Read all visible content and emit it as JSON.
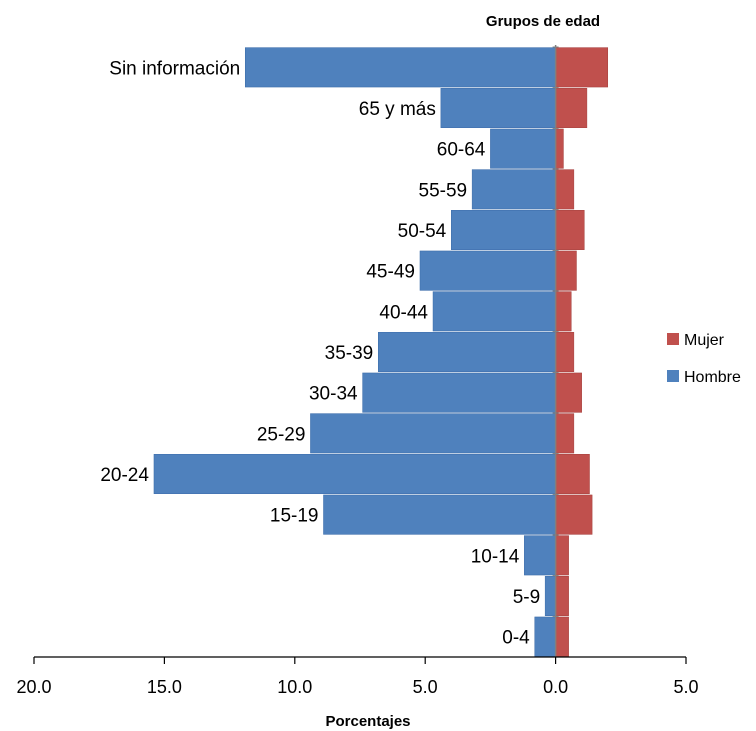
{
  "chart_data": {
    "type": "bar",
    "orientation": "horizontal",
    "title": "",
    "ylabel": "Grupos de edad",
    "xlabel": "Porcentajes",
    "xlim": [
      -20,
      5
    ],
    "x_ticks": [
      -20,
      -15,
      -10,
      -5,
      0,
      5
    ],
    "x_tick_labels": [
      "20.0",
      "15.0",
      "10.0",
      "5.0",
      "0.0",
      "5.0"
    ],
    "categories": [
      "0-4",
      "5-9",
      "10-14",
      "15-19",
      "20-24",
      "25-29",
      "30-34",
      "35-39",
      "40-44",
      "45-49",
      "50-54",
      "55-59",
      "60-64",
      "65 y más",
      "Sin información"
    ],
    "series": [
      {
        "name": "Hombre",
        "color": "#4f81bd",
        "values": [
          -0.8,
          -0.4,
          -1.2,
          -8.9,
          -15.4,
          -9.4,
          -7.4,
          -6.8,
          -4.7,
          -5.2,
          -4.0,
          -3.2,
          -2.5,
          -4.4,
          -11.9
        ]
      },
      {
        "name": "Mujer",
        "color": "#c0504d",
        "values": [
          0.5,
          0.5,
          0.5,
          1.4,
          1.3,
          0.7,
          1.0,
          0.7,
          0.6,
          0.8,
          1.1,
          0.7,
          0.3,
          1.2,
          2.0
        ]
      }
    ],
    "legend_position": "right",
    "grid": false
  }
}
